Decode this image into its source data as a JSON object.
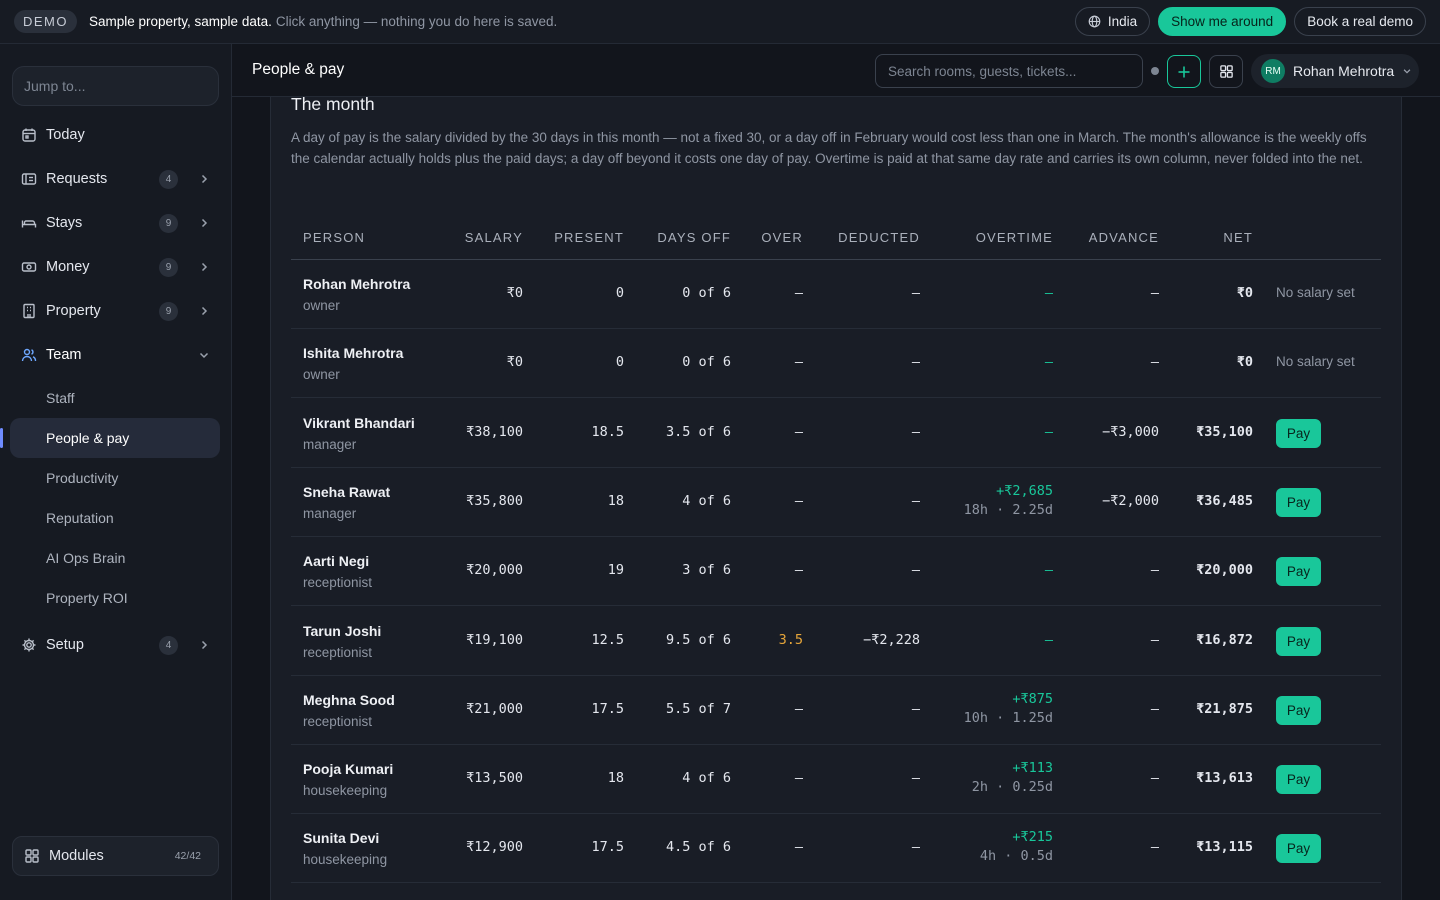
{
  "banner": {
    "demo_label": "DEMO",
    "strong_text": "Sample property, sample data.",
    "muted_text": "Click anything — nothing you do here is saved.",
    "region_label": "India",
    "tour_label": "Show me around",
    "book_label": "Book a real demo"
  },
  "sidebar": {
    "jump_placeholder": "Jump to...",
    "nav": [
      {
        "label": "Today",
        "icon": "calendar-icon",
        "badge": ""
      },
      {
        "label": "Requests",
        "icon": "requests-icon",
        "badge": "4"
      },
      {
        "label": "Stays",
        "icon": "bed-icon",
        "badge": "9"
      },
      {
        "label": "Money",
        "icon": "money-icon",
        "badge": "9"
      },
      {
        "label": "Property",
        "icon": "building-icon",
        "badge": "9"
      },
      {
        "label": "Team",
        "icon": "team-icon",
        "badge": ""
      }
    ],
    "team_sub": [
      "Staff",
      "People & pay",
      "Productivity",
      "Reputation",
      "AI Ops Brain",
      "Property ROI"
    ],
    "setup": {
      "label": "Setup",
      "badge": "4"
    },
    "modules": {
      "label": "Modules",
      "count": "42/42"
    }
  },
  "header": {
    "title": "People & pay",
    "search_placeholder": "Search rooms, guests, tickets...",
    "user": {
      "initials": "RM",
      "name": "Rohan Mehrotra"
    }
  },
  "main": {
    "section_title": "The month",
    "intro": "A day of pay is the salary divided by the 30 days in this month — not a fixed 30, or a day off in February would cost less than one in March. The month's allowance is the weekly offs the calendar actually holds plus the paid days; a day off beyond it costs one day of pay. Overtime is paid at that same day rate and carries its own column, never folded into the net.",
    "columns": [
      "PERSON",
      "SALARY",
      "PRESENT",
      "DAYS OFF",
      "OVER",
      "DEDUCTED",
      "OVERTIME",
      "ADVANCE",
      "NET"
    ],
    "pay_label": "Pay",
    "rows": [
      {
        "name": "Rohan Mehrotra",
        "role": "owner",
        "salary": "₹0",
        "present": "0",
        "days_off": "0 of 6",
        "over": "–",
        "deducted": "–",
        "overtime": "–",
        "overtime_detail": "",
        "advance": "–",
        "net": "₹0",
        "note": "No salary set"
      },
      {
        "name": "Ishita Mehrotra",
        "role": "owner",
        "salary": "₹0",
        "present": "0",
        "days_off": "0 of 6",
        "over": "–",
        "deducted": "–",
        "overtime": "–",
        "overtime_detail": "",
        "advance": "–",
        "net": "₹0",
        "note": "No salary set"
      },
      {
        "name": "Vikrant Bhandari",
        "role": "manager",
        "salary": "₹38,100",
        "present": "18.5",
        "days_off": "3.5 of 6",
        "over": "–",
        "deducted": "–",
        "overtime": "–",
        "overtime_detail": "",
        "advance": "−₹3,000",
        "net": "₹35,100",
        "note": ""
      },
      {
        "name": "Sneha Rawat",
        "role": "manager",
        "salary": "₹35,800",
        "present": "18",
        "days_off": "4 of 6",
        "over": "–",
        "deducted": "–",
        "overtime": "+₹2,685",
        "overtime_detail": "18h · 2.25d",
        "advance": "−₹2,000",
        "net": "₹36,485",
        "note": ""
      },
      {
        "name": "Aarti Negi",
        "role": "receptionist",
        "salary": "₹20,000",
        "present": "19",
        "days_off": "3 of 6",
        "over": "–",
        "deducted": "–",
        "overtime": "–",
        "overtime_detail": "",
        "advance": "–",
        "net": "₹20,000",
        "note": ""
      },
      {
        "name": "Tarun Joshi",
        "role": "receptionist",
        "salary": "₹19,100",
        "present": "12.5",
        "days_off": "9.5 of 6",
        "over": "3.5",
        "deducted": "−₹2,228",
        "overtime": "–",
        "overtime_detail": "",
        "advance": "–",
        "net": "₹16,872",
        "note": ""
      },
      {
        "name": "Meghna Sood",
        "role": "receptionist",
        "salary": "₹21,000",
        "present": "17.5",
        "days_off": "5.5 of 7",
        "over": "–",
        "deducted": "–",
        "overtime": "+₹875",
        "overtime_detail": "10h · 1.25d",
        "advance": "–",
        "net": "₹21,875",
        "note": ""
      },
      {
        "name": "Pooja Kumari",
        "role": "housekeeping",
        "salary": "₹13,500",
        "present": "18",
        "days_off": "4 of 6",
        "over": "–",
        "deducted": "–",
        "overtime": "+₹113",
        "overtime_detail": "2h · 0.25d",
        "advance": "–",
        "net": "₹13,613",
        "note": ""
      },
      {
        "name": "Sunita Devi",
        "role": "housekeeping",
        "salary": "₹12,900",
        "present": "17.5",
        "days_off": "4.5 of 6",
        "over": "–",
        "deducted": "–",
        "overtime": "+₹215",
        "overtime_detail": "4h · 0.5d",
        "advance": "–",
        "net": "₹13,115",
        "note": ""
      }
    ]
  },
  "colors": {
    "accent": "#19c79a",
    "warning": "#e7a63a",
    "selected_bg": "#252b3a"
  }
}
